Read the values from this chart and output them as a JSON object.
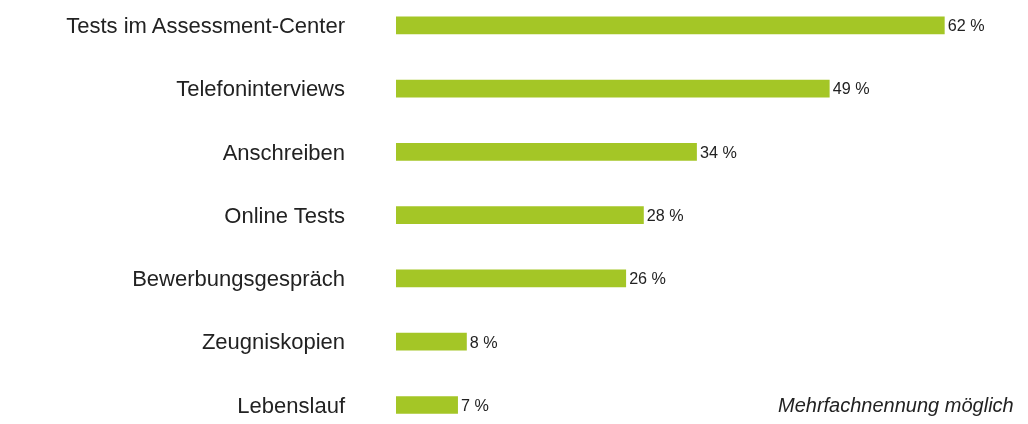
{
  "chart_data": {
    "type": "bar",
    "orientation": "horizontal",
    "categories": [
      "Tests im Assessment-Center",
      "Telefoninterviews",
      "Anschreiben",
      "Online Tests",
      "Bewerbungsgespräch",
      "Zeugniskopien",
      "Lebenslauf"
    ],
    "values": [
      62,
      49,
      34,
      28,
      26,
      8,
      7
    ],
    "value_labels": [
      "62 %",
      "49 %",
      "34 %",
      "28 %",
      "26 %",
      "8 %",
      "7 %"
    ],
    "color": "#a4c626",
    "annotations": [
      "Mehrfachnennung möglich"
    ]
  }
}
